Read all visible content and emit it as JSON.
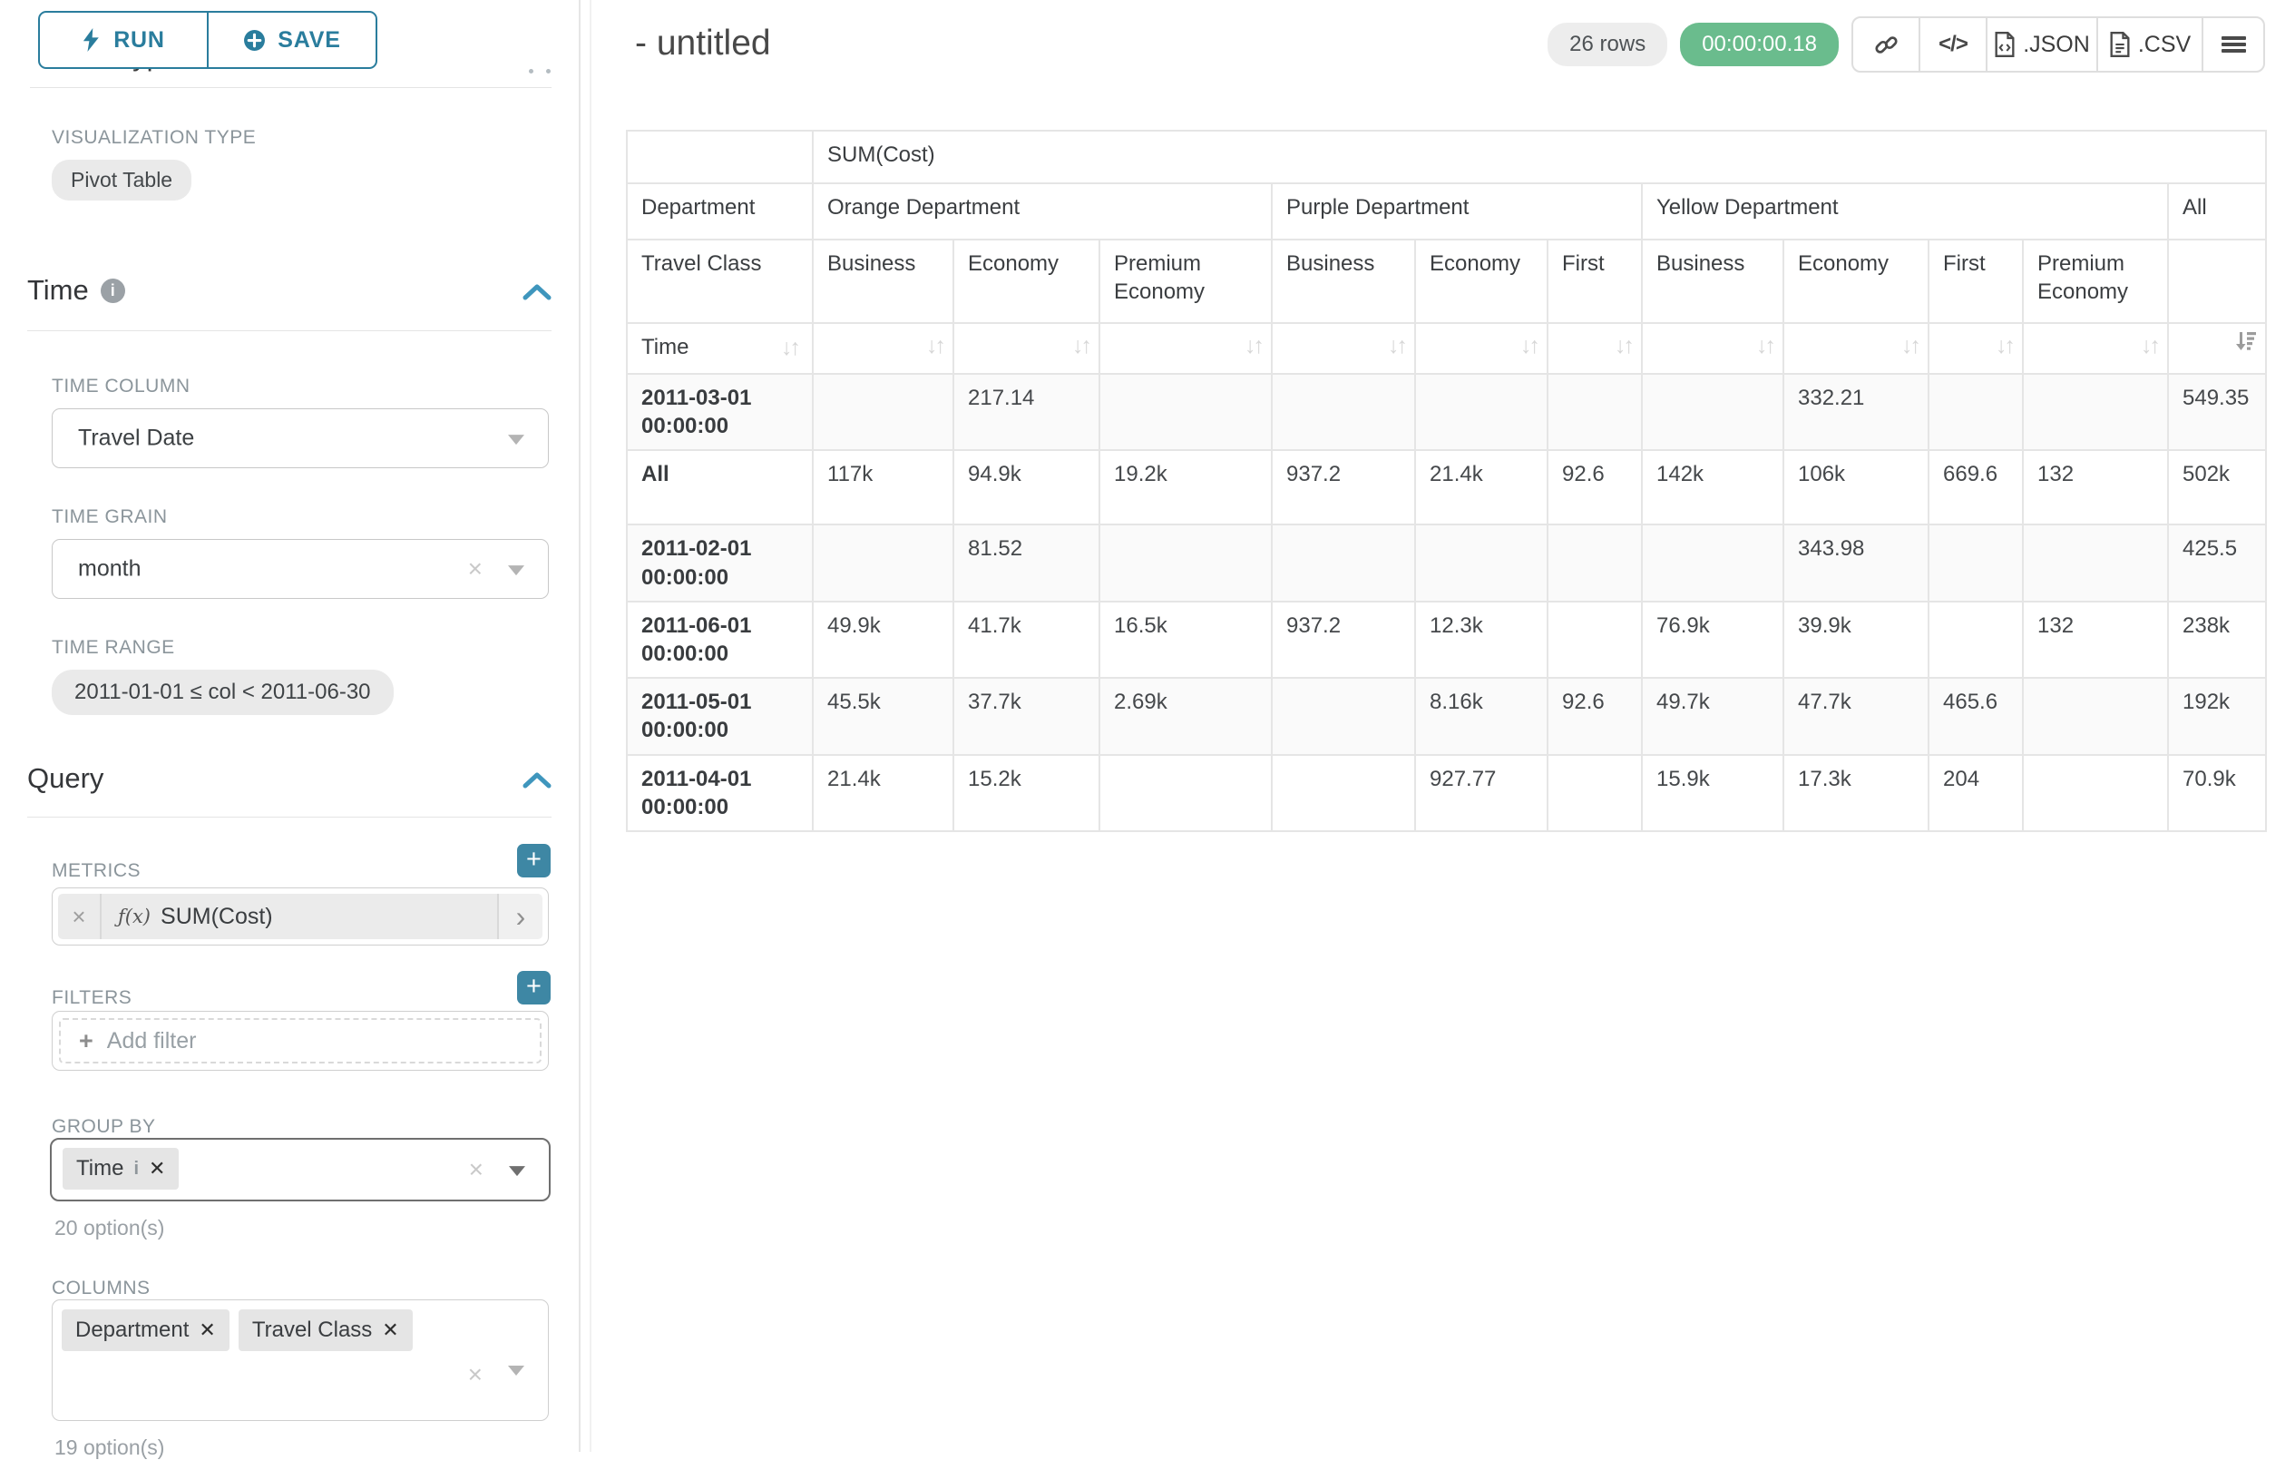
{
  "colors": {
    "accent_teal": "#2a7d9d",
    "button_teal": "#3e87a4",
    "success_green": "#6abc8d",
    "chip_gray": "#e5e5e5"
  },
  "sidebar": {
    "run_label": "RUN",
    "save_label": "SAVE",
    "chart_type_heading": "Chart Type",
    "viz": {
      "label": "VISUALIZATION TYPE",
      "value": "Pivot Table"
    },
    "time": {
      "heading": "Time",
      "column_label": "TIME COLUMN",
      "column_value": "Travel Date",
      "grain_label": "TIME GRAIN",
      "grain_value": "month",
      "range_label": "TIME RANGE",
      "range_value": "2011-01-01 ≤ col < 2011-06-30"
    },
    "query": {
      "heading": "Query",
      "metrics_label": "METRICS",
      "metric_fx": "ƒ(x)",
      "metric_value": "SUM(Cost)",
      "filters_label": "FILTERS",
      "add_filter_label": "Add filter",
      "group_by_label": "GROUP BY",
      "group_by_chips": [
        "Time"
      ],
      "group_by_hint": "20 option(s)",
      "columns_label": "COLUMNS",
      "columns_chips": [
        "Department",
        "Travel Class"
      ],
      "columns_hint": "19 option(s)"
    }
  },
  "main": {
    "title": "- untitled",
    "rows_badge": "26 rows",
    "timer_badge": "00:00:00.18",
    "json_label": ".JSON",
    "csv_label": ".CSV",
    "pivot": {
      "metric_header": "SUM(Cost)",
      "col_dim_labels": [
        "Department",
        "Travel Class"
      ],
      "row_dim_label": "Time",
      "sort_icon": "↓↑",
      "groups": [
        {
          "label": "Orange Department",
          "cols": [
            "Business",
            "Economy",
            "Premium Economy"
          ]
        },
        {
          "label": "Purple Department",
          "cols": [
            "Business",
            "Economy",
            "First"
          ]
        },
        {
          "label": "Yellow Department",
          "cols": [
            "Business",
            "Economy",
            "First",
            "Premium Economy"
          ]
        },
        {
          "label": "All",
          "cols": [
            ""
          ]
        }
      ],
      "rows": [
        {
          "label": "2011-03-01 00:00:00",
          "values": [
            "",
            "217.14",
            "",
            "",
            "",
            "",
            "",
            "332.21",
            "",
            "",
            "549.35"
          ]
        },
        {
          "label": "All",
          "values": [
            "117k",
            "94.9k",
            "19.2k",
            "937.2",
            "21.4k",
            "92.6",
            "142k",
            "106k",
            "669.6",
            "132",
            "502k"
          ]
        },
        {
          "label": "2011-02-01 00:00:00",
          "values": [
            "",
            "81.52",
            "",
            "",
            "",
            "",
            "",
            "343.98",
            "",
            "",
            "425.5"
          ]
        },
        {
          "label": "2011-06-01 00:00:00",
          "values": [
            "49.9k",
            "41.7k",
            "16.5k",
            "937.2",
            "12.3k",
            "",
            "76.9k",
            "39.9k",
            "",
            "132",
            "238k"
          ]
        },
        {
          "label": "2011-05-01 00:00:00",
          "values": [
            "45.5k",
            "37.7k",
            "2.69k",
            "",
            "8.16k",
            "92.6",
            "49.7k",
            "47.7k",
            "465.6",
            "",
            "192k"
          ]
        },
        {
          "label": "2011-04-01 00:00:00",
          "values": [
            "21.4k",
            "15.2k",
            "",
            "",
            "927.77",
            "",
            "15.9k",
            "17.3k",
            "204",
            "",
            "70.9k"
          ]
        }
      ]
    }
  }
}
